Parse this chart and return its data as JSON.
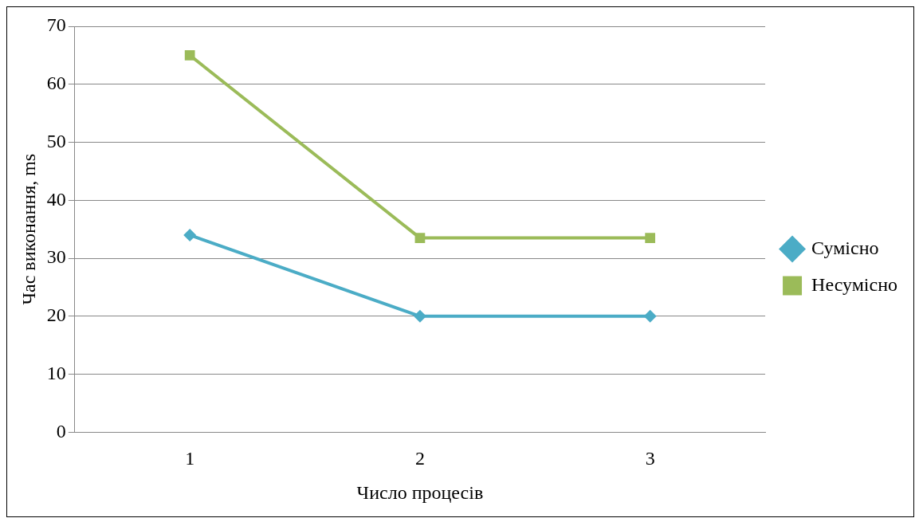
{
  "chart_data": {
    "type": "line",
    "xlabel": "Число процесів",
    "ylabel": "Час виконання, ms",
    "categories": [
      "1",
      "2",
      "3"
    ],
    "series": [
      {
        "name": "Сумісно",
        "color": "#4bacc6",
        "marker": "diamond",
        "values": [
          34,
          20,
          20
        ]
      },
      {
        "name": "Несумісно",
        "color": "#9bbb59",
        "marker": "square",
        "values": [
          65,
          33.5,
          33.5
        ]
      }
    ],
    "ylim": [
      0,
      70
    ],
    "yticks": [
      0,
      10,
      20,
      30,
      40,
      50,
      60,
      70
    ],
    "grid": "y",
    "legend": "right"
  }
}
